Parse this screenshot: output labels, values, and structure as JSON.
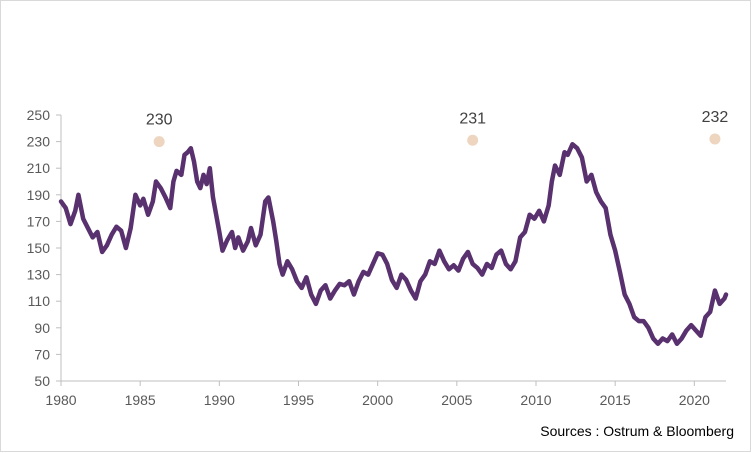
{
  "chart_data": {
    "type": "line",
    "title": "",
    "xlabel": "",
    "ylabel": "",
    "xlim": [
      1980,
      2022
    ],
    "ylim": [
      50,
      250
    ],
    "grid": false,
    "legend": "none",
    "x_ticks": [
      1980,
      1985,
      1990,
      1995,
      2000,
      2005,
      2010,
      2015,
      2020
    ],
    "y_ticks": [
      50,
      70,
      90,
      110,
      130,
      150,
      170,
      190,
      210,
      230,
      250
    ],
    "line_color": "#58316E",
    "marker_color": "#EDD5C0",
    "series": [
      {
        "points": [
          [
            1980.0,
            185
          ],
          [
            1980.3,
            180
          ],
          [
            1980.6,
            168
          ],
          [
            1980.9,
            178
          ],
          [
            1981.1,
            190
          ],
          [
            1981.4,
            172
          ],
          [
            1981.7,
            165
          ],
          [
            1982.0,
            158
          ],
          [
            1982.3,
            162
          ],
          [
            1982.6,
            147
          ],
          [
            1982.9,
            152
          ],
          [
            1983.2,
            160
          ],
          [
            1983.5,
            166
          ],
          [
            1983.8,
            163
          ],
          [
            1984.1,
            150
          ],
          [
            1984.4,
            165
          ],
          [
            1984.7,
            190
          ],
          [
            1985.0,
            182
          ],
          [
            1985.2,
            187
          ],
          [
            1985.5,
            175
          ],
          [
            1985.8,
            185
          ],
          [
            1986.0,
            200
          ],
          [
            1986.3,
            195
          ],
          [
            1986.6,
            188
          ],
          [
            1986.9,
            180
          ],
          [
            1987.1,
            200
          ],
          [
            1987.3,
            208
          ],
          [
            1987.6,
            205
          ],
          [
            1987.8,
            220
          ],
          [
            1988.0,
            222
          ],
          [
            1988.2,
            225
          ],
          [
            1988.4,
            215
          ],
          [
            1988.6,
            200
          ],
          [
            1988.8,
            195
          ],
          [
            1989.0,
            205
          ],
          [
            1989.2,
            198
          ],
          [
            1989.4,
            210
          ],
          [
            1989.6,
            188
          ],
          [
            1989.8,
            175
          ],
          [
            1990.0,
            162
          ],
          [
            1990.2,
            148
          ],
          [
            1990.5,
            156
          ],
          [
            1990.8,
            162
          ],
          [
            1991.0,
            150
          ],
          [
            1991.2,
            158
          ],
          [
            1991.5,
            148
          ],
          [
            1991.8,
            155
          ],
          [
            1992.0,
            165
          ],
          [
            1992.3,
            152
          ],
          [
            1992.6,
            160
          ],
          [
            1992.9,
            185
          ],
          [
            1993.1,
            188
          ],
          [
            1993.4,
            170
          ],
          [
            1993.6,
            155
          ],
          [
            1993.8,
            138
          ],
          [
            1994.0,
            130
          ],
          [
            1994.3,
            140
          ],
          [
            1994.6,
            134
          ],
          [
            1994.9,
            125
          ],
          [
            1995.2,
            120
          ],
          [
            1995.5,
            128
          ],
          [
            1995.8,
            115
          ],
          [
            1996.1,
            108
          ],
          [
            1996.4,
            118
          ],
          [
            1996.7,
            122
          ],
          [
            1997.0,
            112
          ],
          [
            1997.3,
            118
          ],
          [
            1997.6,
            123
          ],
          [
            1997.9,
            122
          ],
          [
            1998.2,
            125
          ],
          [
            1998.5,
            115
          ],
          [
            1998.8,
            125
          ],
          [
            1999.1,
            132
          ],
          [
            1999.4,
            130
          ],
          [
            1999.7,
            138
          ],
          [
            2000.0,
            146
          ],
          [
            2000.3,
            145
          ],
          [
            2000.6,
            138
          ],
          [
            2000.9,
            126
          ],
          [
            2001.2,
            120
          ],
          [
            2001.5,
            130
          ],
          [
            2001.8,
            126
          ],
          [
            2002.1,
            118
          ],
          [
            2002.4,
            112
          ],
          [
            2002.7,
            125
          ],
          [
            2003.0,
            130
          ],
          [
            2003.3,
            140
          ],
          [
            2003.6,
            138
          ],
          [
            2003.9,
            148
          ],
          [
            2004.2,
            140
          ],
          [
            2004.5,
            134
          ],
          [
            2004.8,
            137
          ],
          [
            2005.1,
            133
          ],
          [
            2005.4,
            142
          ],
          [
            2005.7,
            147
          ],
          [
            2006.0,
            138
          ],
          [
            2006.3,
            135
          ],
          [
            2006.6,
            130
          ],
          [
            2006.9,
            138
          ],
          [
            2007.2,
            135
          ],
          [
            2007.5,
            145
          ],
          [
            2007.8,
            148
          ],
          [
            2008.1,
            138
          ],
          [
            2008.4,
            134
          ],
          [
            2008.7,
            140
          ],
          [
            2009.0,
            158
          ],
          [
            2009.3,
            162
          ],
          [
            2009.6,
            175
          ],
          [
            2009.9,
            172
          ],
          [
            2010.2,
            178
          ],
          [
            2010.5,
            170
          ],
          [
            2010.8,
            182
          ],
          [
            2011.0,
            200
          ],
          [
            2011.2,
            212
          ],
          [
            2011.5,
            205
          ],
          [
            2011.8,
            222
          ],
          [
            2012.0,
            220
          ],
          [
            2012.3,
            228
          ],
          [
            2012.6,
            225
          ],
          [
            2012.9,
            218
          ],
          [
            2013.2,
            200
          ],
          [
            2013.5,
            205
          ],
          [
            2013.8,
            192
          ],
          [
            2014.1,
            185
          ],
          [
            2014.4,
            180
          ],
          [
            2014.7,
            160
          ],
          [
            2015.0,
            148
          ],
          [
            2015.3,
            132
          ],
          [
            2015.6,
            115
          ],
          [
            2015.9,
            108
          ],
          [
            2016.2,
            98
          ],
          [
            2016.5,
            95
          ],
          [
            2016.8,
            95
          ],
          [
            2017.1,
            90
          ],
          [
            2017.4,
            82
          ],
          [
            2017.7,
            78
          ],
          [
            2018.0,
            82
          ],
          [
            2018.3,
            80
          ],
          [
            2018.6,
            85
          ],
          [
            2018.9,
            78
          ],
          [
            2019.2,
            82
          ],
          [
            2019.5,
            88
          ],
          [
            2019.8,
            92
          ],
          [
            2020.1,
            88
          ],
          [
            2020.4,
            84
          ],
          [
            2020.7,
            98
          ],
          [
            2021.0,
            102
          ],
          [
            2021.3,
            118
          ],
          [
            2021.6,
            108
          ],
          [
            2021.9,
            112
          ],
          [
            2022.0,
            115
          ]
        ]
      }
    ],
    "y_mapping_hint": "none",
    "annotations": [
      {
        "label": "230",
        "x": 1986.2,
        "y": 230
      },
      {
        "label": "231",
        "x": 2006.0,
        "y": 231
      },
      {
        "label": "232",
        "x": 2021.3,
        "y": 232
      }
    ],
    "source": "Sources : Ostrum & Bloomberg"
  }
}
